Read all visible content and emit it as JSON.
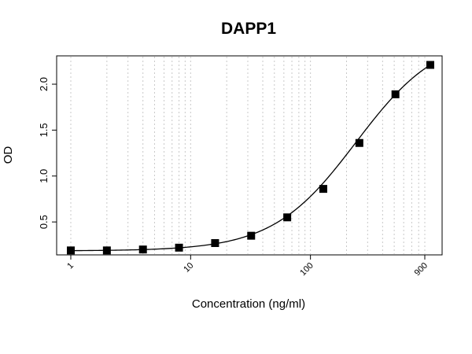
{
  "chart_data": {
    "type": "scatter",
    "title": "DAPP1",
    "xlabel": "Concentration (ng/ml)",
    "ylabel": "OD",
    "x_scale": "log",
    "xlim": [
      1,
      900
    ],
    "ylim": [
      0.15,
      2.3
    ],
    "x_tick_labels": [
      "1",
      "10",
      "100",
      "900"
    ],
    "x_tick_values": [
      1,
      10,
      100,
      900
    ],
    "y_tick_labels": [
      "0.5",
      "1.0",
      "1.5",
      "2.0"
    ],
    "y_tick_values": [
      0.5,
      1.0,
      1.5,
      2.0
    ],
    "grid": "vertical-dotted",
    "series": [
      {
        "marker": "square",
        "color": "#000000",
        "x": [
          1,
          2,
          4,
          8,
          16,
          32,
          64,
          128,
          256,
          512,
          1000
        ],
        "y": [
          0.19,
          0.19,
          0.2,
          0.22,
          0.27,
          0.35,
          0.55,
          0.86,
          1.36,
          1.89,
          2.21
        ]
      }
    ],
    "fit_curve": {
      "type": "4PL",
      "color": "#000000"
    }
  }
}
